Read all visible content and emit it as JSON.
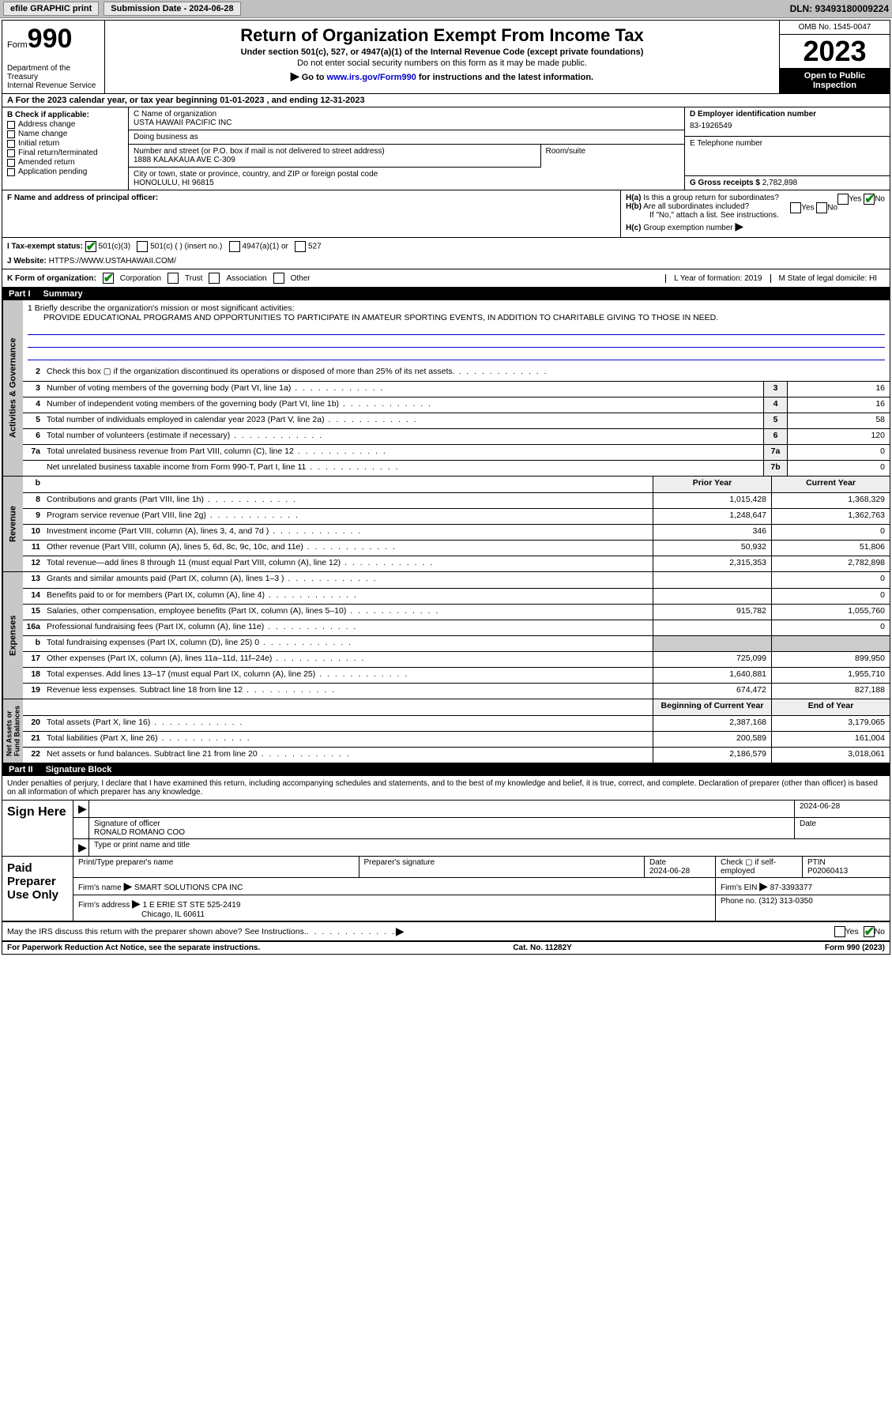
{
  "topbar": {
    "efile": "efile GRAPHIC print",
    "submission_label": "Submission Date - 2024-06-28",
    "dln_label": "DLN: 93493180009224"
  },
  "header": {
    "form_label": "Form",
    "form_no": "990",
    "dept": "Department of the Treasury\nInternal Revenue Service",
    "title": "Return of Organization Exempt From Income Tax",
    "sub1": "Under section 501(c), 527, or 4947(a)(1) of the Internal Revenue Code (except private foundations)",
    "sub2": "Do not enter social security numbers on this form as it may be made public.",
    "goto_pre": "Go to ",
    "goto_link": "www.irs.gov/Form990",
    "goto_post": " for instructions and the latest information.",
    "omb": "OMB No. 1545-0047",
    "year": "2023",
    "open": "Open to Public Inspection"
  },
  "rowA": "A For the 2023 calendar year, or tax year beginning 01-01-2023    , and ending 12-31-2023",
  "sectionB": {
    "label": "B Check if applicable:",
    "opts": [
      "Address change",
      "Name change",
      "Initial return",
      "Final return/terminated",
      "Amended return",
      "Application pending"
    ]
  },
  "sectionC": {
    "name_lbl": "C Name of organization",
    "name_val": "USTA HAWAII PACIFIC INC",
    "dba_lbl": "Doing business as",
    "addr_lbl": "Number and street (or P.O. box if mail is not delivered to street address)",
    "addr_val": "1888 KALAKAUA AVE C-309",
    "room_lbl": "Room/suite",
    "city_lbl": "City or town, state or province, country, and ZIP or foreign postal code",
    "city_val": "HONOLULU, HI  96815"
  },
  "sectionD": {
    "ein_lbl": "D Employer identification number",
    "ein_val": "83-1926549",
    "tel_lbl": "E Telephone number",
    "gross_lbl": "G Gross receipts $ ",
    "gross_val": "2,782,898"
  },
  "sectionF": {
    "lbl": "F  Name and address of principal officer:"
  },
  "sectionH": {
    "ha": "H(a)  Is this a group return for subordinates?",
    "hb": "H(b)  Are all subordinates included?",
    "hb_note": "If \"No,\" attach a list. See instructions.",
    "hc": "H(c)  Group exemption number ",
    "yes": "Yes",
    "no": "No"
  },
  "sectionI": {
    "lbl": "I    Tax-exempt status:",
    "o1": "501(c)(3)",
    "o2": "501(c) (  ) (insert no.)",
    "o3": "4947(a)(1) or",
    "o4": "527"
  },
  "sectionJ": {
    "lbl": "J   Website: ",
    "val": "HTTPS://WWW.USTAHAWAII.COM/"
  },
  "sectionK": {
    "lbl": "K Form of organization:",
    "opts": [
      "Corporation",
      "Trust",
      "Association",
      "Other"
    ],
    "year_lbl": "L Year of formation: 2019",
    "state_lbl": "M State of legal domicile: HI"
  },
  "part1": {
    "label": "Part I",
    "title": "Summary"
  },
  "mission": {
    "line1_lbl": "1   Briefly describe the organization's mission or most significant activities:",
    "text": "PROVIDE EDUCATIONAL PROGRAMS AND OPPORTUNITIES TO PARTICIPATE IN AMATEUR SPORTING EVENTS, IN ADDITION TO CHARITABLE GIVING TO THOSE IN NEED."
  },
  "gov_lines": [
    {
      "n": "2",
      "d": "Check this box ▢ if the organization discontinued its operations or disposed of more than 25% of its net assets.",
      "box": "",
      "val": ""
    },
    {
      "n": "3",
      "d": "Number of voting members of the governing body (Part VI, line 1a)",
      "box": "3",
      "val": "16"
    },
    {
      "n": "4",
      "d": "Number of independent voting members of the governing body (Part VI, line 1b)",
      "box": "4",
      "val": "16"
    },
    {
      "n": "5",
      "d": "Total number of individuals employed in calendar year 2023 (Part V, line 2a)",
      "box": "5",
      "val": "58"
    },
    {
      "n": "6",
      "d": "Total number of volunteers (estimate if necessary)",
      "box": "6",
      "val": "120"
    },
    {
      "n": "7a",
      "d": "Total unrelated business revenue from Part VIII, column (C), line 12",
      "box": "7a",
      "val": "0"
    },
    {
      "n": "",
      "d": "Net unrelated business taxable income from Form 990-T, Part I, line 11",
      "box": "7b",
      "val": "0"
    }
  ],
  "rev_hdr": {
    "n": "b",
    "py": "Prior Year",
    "cy": "Current Year"
  },
  "rev_lines": [
    {
      "n": "8",
      "d": "Contributions and grants (Part VIII, line 1h)",
      "py": "1,015,428",
      "cy": "1,368,329"
    },
    {
      "n": "9",
      "d": "Program service revenue (Part VIII, line 2g)",
      "py": "1,248,647",
      "cy": "1,362,763"
    },
    {
      "n": "10",
      "d": "Investment income (Part VIII, column (A), lines 3, 4, and 7d )",
      "py": "346",
      "cy": "0"
    },
    {
      "n": "11",
      "d": "Other revenue (Part VIII, column (A), lines 5, 6d, 8c, 9c, 10c, and 11e)",
      "py": "50,932",
      "cy": "51,806"
    },
    {
      "n": "12",
      "d": "Total revenue—add lines 8 through 11 (must equal Part VIII, column (A), line 12)",
      "py": "2,315,353",
      "cy": "2,782,898"
    }
  ],
  "exp_lines": [
    {
      "n": "13",
      "d": "Grants and similar amounts paid (Part IX, column (A), lines 1–3 )",
      "py": "",
      "cy": "0"
    },
    {
      "n": "14",
      "d": "Benefits paid to or for members (Part IX, column (A), line 4)",
      "py": "",
      "cy": "0"
    },
    {
      "n": "15",
      "d": "Salaries, other compensation, employee benefits (Part IX, column (A), lines 5–10)",
      "py": "915,782",
      "cy": "1,055,760"
    },
    {
      "n": "16a",
      "d": "Professional fundraising fees (Part IX, column (A), line 11e)",
      "py": "",
      "cy": "0"
    },
    {
      "n": "b",
      "d": "Total fundraising expenses (Part IX, column (D), line 25) 0",
      "py": "shade",
      "cy": "shade"
    },
    {
      "n": "17",
      "d": "Other expenses (Part IX, column (A), lines 11a–11d, 11f–24e)",
      "py": "725,099",
      "cy": "899,950"
    },
    {
      "n": "18",
      "d": "Total expenses. Add lines 13–17 (must equal Part IX, column (A), line 25)",
      "py": "1,640,881",
      "cy": "1,955,710"
    },
    {
      "n": "19",
      "d": "Revenue less expenses. Subtract line 18 from line 12",
      "py": "674,472",
      "cy": "827,188"
    }
  ],
  "na_hdr": {
    "py": "Beginning of Current Year",
    "cy": "End of Year"
  },
  "na_lines": [
    {
      "n": "20",
      "d": "Total assets (Part X, line 16)",
      "py": "2,387,168",
      "cy": "3,179,065"
    },
    {
      "n": "21",
      "d": "Total liabilities (Part X, line 26)",
      "py": "200,589",
      "cy": "161,004"
    },
    {
      "n": "22",
      "d": "Net assets or fund balances. Subtract line 21 from line 20",
      "py": "2,186,579",
      "cy": "3,018,061"
    }
  ],
  "vtabs": {
    "gov": "Activities & Governance",
    "rev": "Revenue",
    "exp": "Expenses",
    "na": "Net Assets or\nFund Balances"
  },
  "part2": {
    "label": "Part II",
    "title": "Signature Block"
  },
  "perjury": "Under penalties of perjury, I declare that I have examined this return, including accompanying schedules and statements, and to the best of my knowledge and belief, it is true, correct, and complete. Declaration of preparer (other than officer) is based on all information of which preparer has any knowledge.",
  "sign": {
    "here": "Sign Here",
    "sig_lbl": "Signature of officer",
    "officer": "RONALD ROMANO  COO",
    "type_lbl": "Type or print name and title",
    "date_lbl": "Date",
    "date_val": "2024-06-28"
  },
  "paid": {
    "title": "Paid Preparer Use Only",
    "name_lbl": "Print/Type preparer's name",
    "sig_lbl": "Preparer's signature",
    "date_lbl": "Date",
    "date_val": "2024-06-28",
    "self_lbl": "Check ▢ if self-employed",
    "ptin_lbl": "PTIN",
    "ptin_val": "P02060413",
    "firm_name_lbl": "Firm's name ",
    "firm_name": "SMART SOLUTIONS CPA INC",
    "firm_ein_lbl": "Firm's EIN ",
    "firm_ein": "87-3393377",
    "firm_addr_lbl": "Firm's address ",
    "firm_addr": "1 E ERIE ST STE 525-2419",
    "firm_city": "Chicago, IL  60611",
    "phone_lbl": "Phone no. ",
    "phone": "(312) 313-0350"
  },
  "discuss": {
    "q": "May the IRS discuss this return with the preparer shown above? See Instructions.",
    "yes": "Yes",
    "no": "No"
  },
  "footer": {
    "left": "For Paperwork Reduction Act Notice, see the separate instructions.",
    "mid": "Cat. No. 11282Y",
    "right": "Form 990 (2023)"
  },
  "colors": {
    "accent": "#0a8a0a",
    "link": "#0000cc",
    "shade": "#cccccc",
    "topbar": "#c0c0c0"
  }
}
